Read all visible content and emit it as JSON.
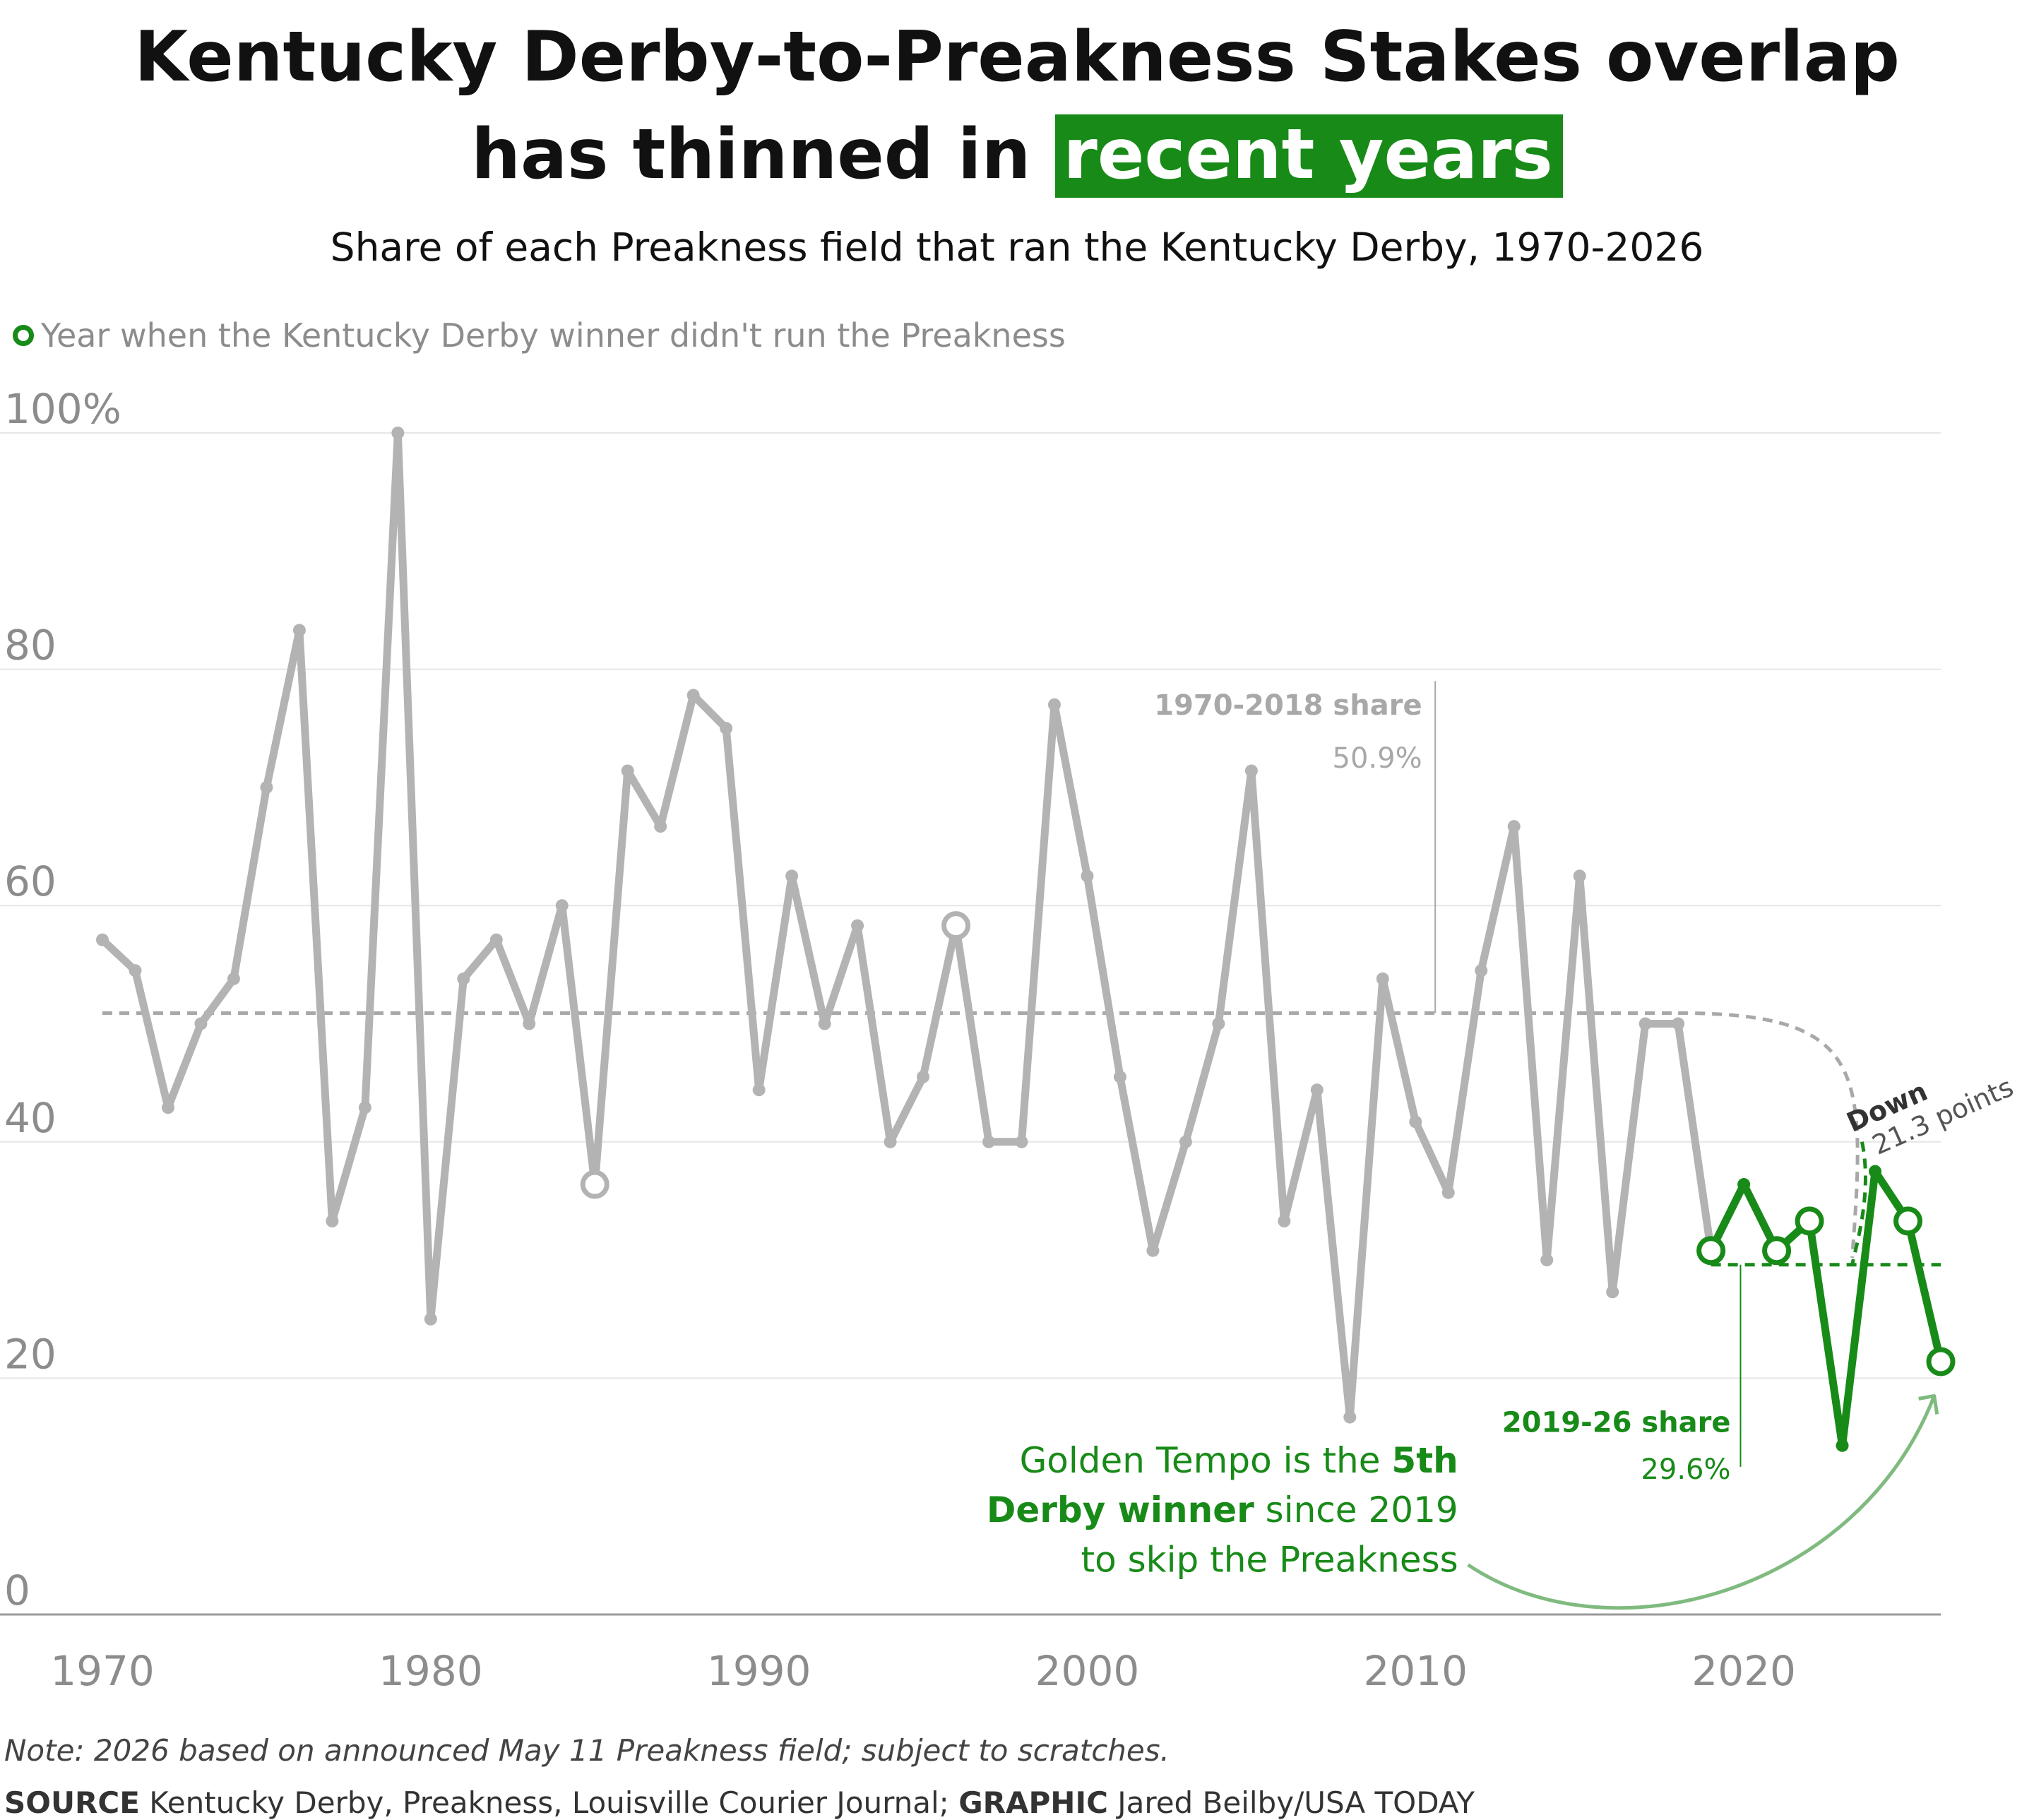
{
  "title": {
    "line1": "Kentucky Derby-to-Preakness Stakes overlap",
    "line2_prefix": "has thinned in",
    "line2_highlight": "recent years"
  },
  "subtitle": "Share of each Preakness field that ran the Kentucky Derby, 1970-2026",
  "legend": {
    "label": "Year when the Kentucky Derby winner didn't run the Preakness",
    "marker_icon": "open-circle-icon"
  },
  "note": "Note: 2026 based on announced May 11 Preakness field; subject to scratches.",
  "source": {
    "source_label": "SOURCE",
    "source_text": " Kentucky Derby, Preakness, Louisville Courier Journal; ",
    "graphic_label": "GRAPHIC",
    "graphic_text": " Jared Beilby/USA TODAY"
  },
  "colors": {
    "gray_series": "#b3b3b3",
    "green_series": "#188a18",
    "highlight": "#188a18",
    "text": "#111111",
    "axis_text": "#8c8c8c"
  },
  "chart_data": {
    "type": "line",
    "x_range": [
      1970,
      2026
    ],
    "ylim": [
      0,
      100
    ],
    "y_ticks": [
      0,
      20,
      40,
      60,
      80,
      100
    ],
    "y_tick_labels": [
      "0",
      "20",
      "40",
      "60",
      "80",
      "100%"
    ],
    "x_ticks": [
      1970,
      1980,
      1990,
      2000,
      2010,
      2020
    ],
    "x_tick_labels": [
      "1970",
      "1980",
      "1990",
      "2000",
      "2010",
      "2020"
    ],
    "grid": true,
    "series": [
      {
        "color": "#b3b3b3",
        "x": [
          1970,
          1971,
          1972,
          1973,
          1974,
          1975,
          1976,
          1977,
          1978,
          1979,
          1980,
          1981,
          1982,
          1983,
          1984,
          1985,
          1986,
          1987,
          1988,
          1989,
          1990,
          1991,
          1992,
          1993,
          1994,
          1995,
          1996,
          1997,
          1998,
          1999,
          2000,
          2001,
          2002,
          2003,
          2004,
          2005,
          2006,
          2007,
          2008,
          2009,
          2010,
          2011,
          2012,
          2013,
          2014,
          2015,
          2016,
          2017,
          2018,
          2019
        ],
        "values": [
          57.1,
          54.5,
          42.9,
          50.0,
          53.8,
          70.0,
          83.3,
          33.3,
          42.9,
          100.0,
          25.0,
          53.8,
          57.1,
          50.0,
          60.0,
          36.4,
          71.4,
          66.7,
          77.8,
          75.0,
          44.4,
          62.5,
          50.0,
          58.3,
          40.0,
          45.5,
          58.3,
          40.0,
          40.0,
          77.0,
          62.5,
          45.5,
          30.8,
          40.0,
          50.0,
          71.4,
          33.3,
          44.4,
          16.7,
          53.8,
          41.7,
          35.7,
          54.5,
          66.7,
          30.0,
          62.5,
          27.3,
          50.0,
          50.0,
          30.8
        ]
      },
      {
        "color": "#188a18",
        "x": [
          2019,
          2020,
          2021,
          2022,
          2023,
          2024,
          2025,
          2026
        ],
        "values": [
          30.8,
          36.4,
          30.8,
          33.3,
          14.3,
          37.5,
          33.3,
          21.4
        ]
      }
    ],
    "hollow_markers": [
      {
        "x": 1985,
        "y": 36.4
      },
      {
        "x": 1996,
        "y": 58.3
      },
      {
        "x": 2019,
        "y": 30.8
      },
      {
        "x": 2021,
        "y": 30.8
      },
      {
        "x": 2022,
        "y": 33.3
      },
      {
        "x": 2025,
        "y": 33.3
      },
      {
        "x": 2026,
        "y": 21.4
      }
    ],
    "reference_lines": [
      {
        "label": "1970-2018 share",
        "value_label": "50.9%",
        "y": 50.9,
        "x_start": 1970,
        "x_end": 2018
      },
      {
        "label": "2019-26 share",
        "value_label": "29.6%",
        "y": 29.6,
        "x_start": 2019,
        "x_end": 2026
      }
    ],
    "annotations": {
      "down_label": "Down",
      "down_points": "21.3 points",
      "golden_pre": "Golden Tempo is the ",
      "golden_b1": "5th",
      "golden_b2": "Derby winner",
      "golden_mid": " since 2019",
      "golden_line3": "to skip the Preakness"
    }
  }
}
